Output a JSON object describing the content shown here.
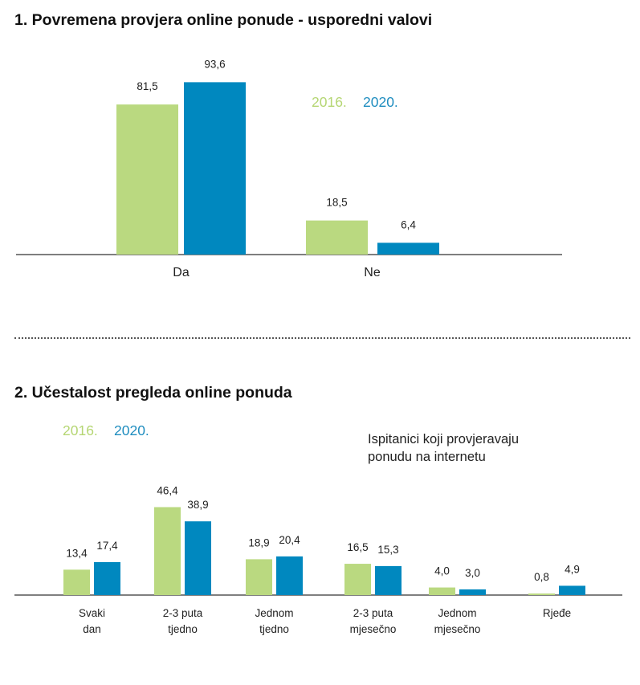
{
  "colors": {
    "y2016": "#bad980",
    "y2020": "#0088bf",
    "axis": "#333333"
  },
  "chart_data": [
    {
      "type": "bar",
      "title": "1. Povremena provjera online ponude - usporedni valovi",
      "categories": [
        "Da",
        "Ne"
      ],
      "series": [
        {
          "name": "2016.",
          "values": [
            81.5,
            18.5
          ],
          "labels": [
            "81,5",
            "18,5"
          ]
        },
        {
          "name": "2020.",
          "values": [
            93.6,
            6.4
          ],
          "labels": [
            "93,6",
            "6,4"
          ]
        }
      ],
      "legend": "top-right",
      "grid": false
    },
    {
      "type": "bar",
      "title": "2. Učestalost pregleda online ponuda",
      "annotation": [
        "Ispitanici koji provjeravaju",
        "ponudu na internetu"
      ],
      "categories": [
        [
          "Svaki",
          "dan"
        ],
        [
          "2-3 puta",
          "tjedno"
        ],
        [
          "Jednom",
          "tjedno"
        ],
        [
          "2-3 puta",
          "mjesečno"
        ],
        [
          "Jednom",
          "mjesečno"
        ],
        [
          "Rjeđe"
        ]
      ],
      "series": [
        {
          "name": "2016.",
          "values": [
            13.4,
            46.4,
            18.9,
            16.5,
            4.0,
            0.8
          ],
          "labels": [
            "13,4",
            "46,4",
            "18,9",
            "16,5",
            "4,0",
            "0,8"
          ]
        },
        {
          "name": "2020.",
          "values": [
            17.4,
            38.9,
            20.4,
            15.3,
            3.0,
            4.9
          ],
          "labels": [
            "17,4",
            "38,9",
            "20,4",
            "15,3",
            "3,0",
            "4,9"
          ]
        }
      ],
      "legend": "top-left",
      "grid": false
    }
  ]
}
